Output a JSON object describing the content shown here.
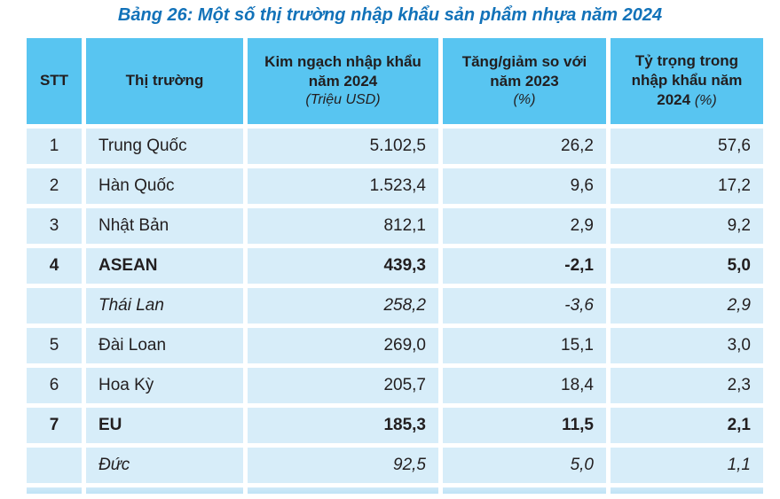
{
  "title": "Bảng 26: Một số thị trường nhập khẩu sản phẩm nhựa năm 2024",
  "table": {
    "headers": [
      {
        "label": "STT",
        "unit": ""
      },
      {
        "label": "Thị trường",
        "unit": ""
      },
      {
        "label": "Kim ngạch nhập khẩu năm 2024",
        "unit": "(Triệu USD)"
      },
      {
        "label": "Tăng/giảm so với năm 2023",
        "unit": "(%)"
      },
      {
        "label": "Tỷ trọng trong nhập khẩu năm 2024",
        "unit": "(%)"
      }
    ],
    "rows": [
      {
        "stt": "1",
        "market": "Trung Quốc",
        "value": "5.102,5",
        "change": "26,2",
        "share": "57,6",
        "style": "normal"
      },
      {
        "stt": "2",
        "market": "Hàn Quốc",
        "value": "1.523,4",
        "change": "9,6",
        "share": "17,2",
        "style": "normal"
      },
      {
        "stt": "3",
        "market": "Nhật Bản",
        "value": "812,1",
        "change": "2,9",
        "share": "9,2",
        "style": "normal"
      },
      {
        "stt": "4",
        "market": "ASEAN",
        "value": "439,3",
        "change": "-2,1",
        "share": "5,0",
        "style": "bold"
      },
      {
        "stt": "",
        "market": "Thái Lan",
        "value": "258,2",
        "change": "-3,6",
        "share": "2,9",
        "style": "italic"
      },
      {
        "stt": "5",
        "market": "Đài Loan",
        "value": "269,0",
        "change": "15,1",
        "share": "3,0",
        "style": "normal"
      },
      {
        "stt": "6",
        "market": "Hoa Kỳ",
        "value": "205,7",
        "change": "18,4",
        "share": "2,3",
        "style": "normal"
      },
      {
        "stt": "7",
        "market": "EU",
        "value": "185,3",
        "change": "11,5",
        "share": "2,1",
        "style": "bold"
      },
      {
        "stt": "",
        "market": "Đức",
        "value": "92,5",
        "change": "5,0",
        "share": "1,1",
        "style": "italic"
      }
    ]
  },
  "colors": {
    "header_bg": "#58C5F1",
    "row_bg": "#D7EDF9",
    "cutoff_row_bg": "#BEE3F6",
    "title_text": "#1272B9",
    "body_text": "#221E1F",
    "page_bg": "#FFFFFF"
  }
}
